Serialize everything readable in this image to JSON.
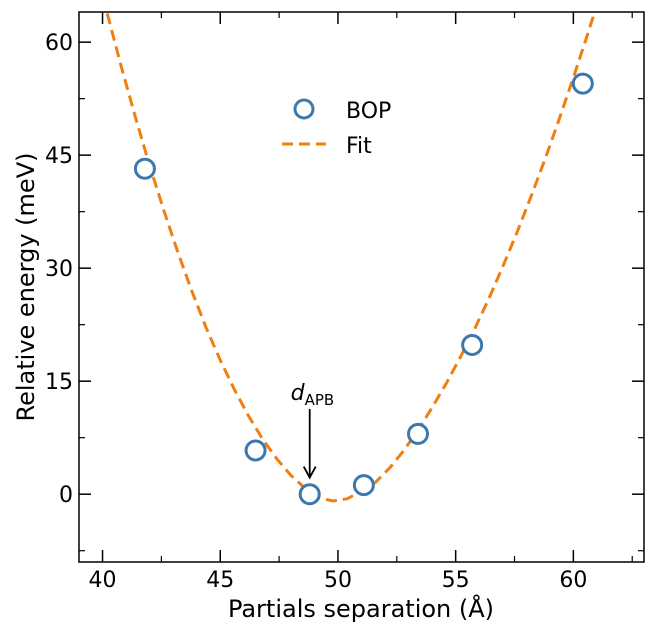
{
  "chart_data": {
    "type": "scatter",
    "xlabel": "Partials separation (Å)",
    "ylabel": "Relative energy (meV)",
    "xlim": [
      39.0,
      63.0
    ],
    "ylim": [
      -9.0,
      64.0
    ],
    "xticks": [
      40,
      45,
      50,
      55,
      60
    ],
    "xtick_labels": [
      "40",
      "45",
      "50",
      "55",
      "60"
    ],
    "yticks": [
      0,
      15,
      30,
      45,
      60
    ],
    "ytick_labels": [
      "0",
      "15",
      "30",
      "45",
      "60"
    ],
    "grid": false,
    "legend_position": "upper-center",
    "series": [
      {
        "name": "BOP",
        "kind": "scatter",
        "marker": "open-circle",
        "color": "#3a78ad",
        "x": [
          41.8,
          46.5,
          48.8,
          51.1,
          53.4,
          55.7,
          60.4
        ],
        "y": [
          43.2,
          5.8,
          0.0,
          1.2,
          8.0,
          19.8,
          54.5
        ]
      },
      {
        "name": "Fit",
        "kind": "line",
        "style": "dashed",
        "color": "#f07f12",
        "x": [
          40.2,
          40.8,
          41.4,
          42.0,
          42.6,
          43.2,
          43.8,
          44.4,
          45.0,
          45.6,
          46.2,
          46.8,
          47.4,
          48.0,
          48.6,
          49.2,
          49.8,
          50.4,
          51.0,
          51.6,
          52.2,
          52.8,
          53.4,
          54.0,
          54.6,
          55.2,
          55.8,
          56.4,
          57.0,
          57.6,
          58.2,
          58.8,
          59.4,
          60.0,
          60.6,
          61.2,
          61.5
        ],
        "y": [
          63.8,
          56.7,
          50.0,
          43.6,
          37.7,
          32.1,
          26.9,
          22.1,
          17.8,
          13.9,
          10.4,
          7.3,
          4.7,
          2.5,
          0.8,
          -0.5,
          -0.9,
          -0.6,
          0.4,
          1.6,
          3.5,
          5.8,
          8.5,
          11.5,
          14.7,
          18.2,
          21.9,
          25.9,
          30.2,
          34.7,
          39.5,
          44.5,
          49.8,
          55.3,
          61.0,
          66.9,
          69.9
        ]
      }
    ],
    "annotations": [
      {
        "text_main": "d",
        "text_sub": "APB",
        "arrow_to": {
          "x": 48.8,
          "y": 2.2
        },
        "text_at": {
          "x": 49.0,
          "y": 12.5
        }
      }
    ]
  }
}
